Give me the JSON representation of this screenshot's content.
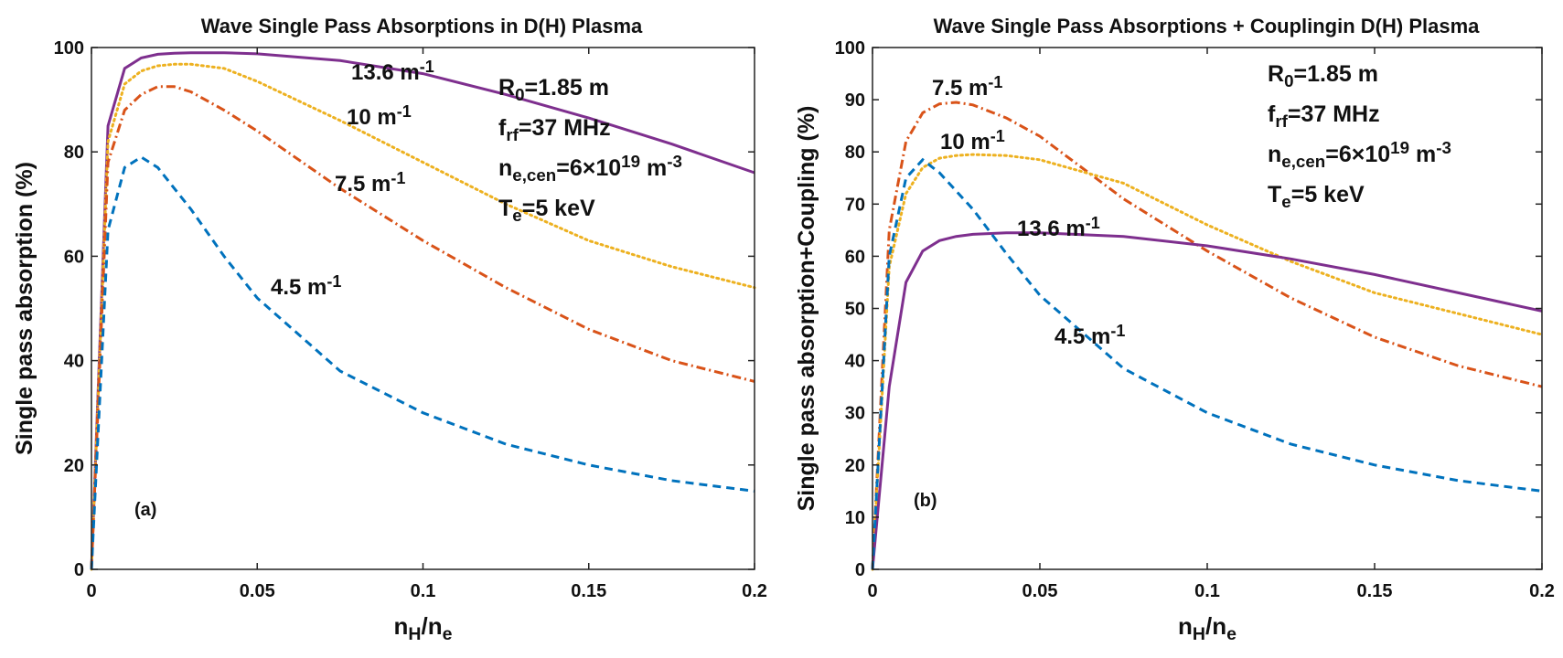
{
  "chart_data": [
    {
      "type": "line",
      "title": "Wave Single Pass Absorptions in D(H) Plasma",
      "xlabel": [
        {
          "t": "n",
          "s": "base"
        },
        {
          "t": "H",
          "s": "sub"
        },
        {
          "t": "/n",
          "s": "base"
        },
        {
          "t": "e",
          "s": "sub"
        }
      ],
      "ylabel": "Single pass absorption (%)",
      "panel": "(a)",
      "x": [
        0,
        0.005,
        0.01,
        0.015,
        0.02,
        0.025,
        0.03,
        0.04,
        0.05,
        0.075,
        0.1,
        0.125,
        0.15,
        0.175,
        0.2
      ],
      "xlim": [
        0,
        0.2
      ],
      "xticks": [
        0,
        0.05,
        0.1,
        0.15,
        0.2
      ],
      "ylim": [
        0,
        100
      ],
      "yticks": [
        0,
        20,
        40,
        60,
        80,
        100
      ],
      "series": [
        {
          "label": [
            {
              "t": "13.6 m",
              "s": "base"
            },
            {
              "t": "-1",
              "s": "sup"
            }
          ],
          "color": "#7e2f8e",
          "linestyle": "solid",
          "values": [
            0,
            85,
            96,
            98,
            98.7,
            98.9,
            99,
            99,
            98.8,
            97.5,
            95,
            91,
            86.5,
            81.5,
            76
          ]
        },
        {
          "label": [
            {
              "t": "10 m",
              "s": "base"
            },
            {
              "t": "-1",
              "s": "sup"
            }
          ],
          "color": "#edb120",
          "linestyle": "dotted",
          "values": [
            0,
            82,
            93,
            95.5,
            96.5,
            96.8,
            96.8,
            96,
            93.5,
            86,
            78,
            70,
            63,
            58,
            54
          ]
        },
        {
          "label": [
            {
              "t": "7.5 m",
              "s": "base"
            },
            {
              "t": "-1",
              "s": "sup"
            }
          ],
          "color": "#d95319",
          "linestyle": "dashdot",
          "values": [
            0,
            78,
            88,
            91,
            92.5,
            92.5,
            91.5,
            88,
            84,
            73,
            63,
            54,
            46,
            40,
            36
          ]
        },
        {
          "label": [
            {
              "t": "4.5 m",
              "s": "base"
            },
            {
              "t": "-1",
              "s": "sup"
            }
          ],
          "color": "#0072bd",
          "linestyle": "dashed",
          "values": [
            0,
            65,
            77,
            79,
            77,
            73,
            69,
            60,
            52,
            38,
            30,
            24,
            20,
            17,
            15
          ]
        }
      ],
      "annotations": [
        [
          {
            "t": "R",
            "s": "base"
          },
          {
            "t": "0",
            "s": "sub"
          },
          {
            "t": "=1.85 m",
            "s": "base"
          }
        ],
        [
          {
            "t": "f",
            "s": "base"
          },
          {
            "t": "rf",
            "s": "sub"
          },
          {
            "t": "=37 MHz",
            "s": "base"
          }
        ],
        [
          {
            "t": "n",
            "s": "base"
          },
          {
            "t": "e,cen",
            "s": "sub"
          },
          {
            "t": "=6×10",
            "s": "base"
          },
          {
            "t": "19",
            "s": "sup"
          },
          {
            "t": " m",
            "s": "base"
          },
          {
            "t": "-3",
            "s": "sup"
          }
        ],
        [
          {
            "t": "T",
            "s": "base"
          },
          {
            "t": "e",
            "s": "sub"
          },
          {
            "t": "=5 keV",
            "s": "base"
          }
        ]
      ]
    },
    {
      "type": "line",
      "title": "Wave Single Pass Absorptions + Couplingin D(H) Plasma",
      "xlabel": [
        {
          "t": "n",
          "s": "base"
        },
        {
          "t": "H",
          "s": "sub"
        },
        {
          "t": "/n",
          "s": "base"
        },
        {
          "t": "e",
          "s": "sub"
        }
      ],
      "ylabel": "Single pass absorption+Coupling (%)",
      "panel": "(b)",
      "x": [
        0,
        0.005,
        0.01,
        0.015,
        0.02,
        0.025,
        0.03,
        0.04,
        0.05,
        0.075,
        0.1,
        0.125,
        0.15,
        0.175,
        0.2
      ],
      "xlim": [
        0,
        0.2
      ],
      "xticks": [
        0,
        0.05,
        0.1,
        0.15,
        0.2
      ],
      "ylim": [
        0,
        100
      ],
      "yticks": [
        0,
        10,
        20,
        30,
        40,
        50,
        60,
        70,
        80,
        90,
        100
      ],
      "series": [
        {
          "label": [
            {
              "t": "7.5 m",
              "s": "base"
            },
            {
              "t": "-1",
              "s": "sup"
            }
          ],
          "color": "#d95319",
          "linestyle": "dashdot",
          "values": [
            0,
            65,
            82,
            87.5,
            89.2,
            89.5,
            89,
            86.5,
            83,
            71,
            61,
            52,
            44.5,
            39,
            35
          ]
        },
        {
          "label": [
            {
              "t": "10 m",
              "s": "base"
            },
            {
              "t": "-1",
              "s": "sup"
            }
          ],
          "color": "#edb120",
          "linestyle": "dotted",
          "values": [
            0,
            58,
            72,
            77,
            78.8,
            79.3,
            79.5,
            79.3,
            78.5,
            74,
            66,
            59,
            53,
            49,
            45
          ]
        },
        {
          "label": [
            {
              "t": "13.6 m",
              "s": "base"
            },
            {
              "t": "-1",
              "s": "sup"
            }
          ],
          "color": "#7e2f8e",
          "linestyle": "solid",
          "values": [
            0,
            35,
            55,
            61,
            63,
            63.8,
            64.2,
            64.5,
            64.5,
            63.8,
            62,
            59.5,
            56.5,
            53,
            49.5
          ]
        },
        {
          "label": [
            {
              "t": "4.5 m",
              "s": "base"
            },
            {
              "t": "-1",
              "s": "sup"
            }
          ],
          "color": "#0072bd",
          "linestyle": "dashed",
          "values": [
            0,
            60,
            75,
            78.5,
            76,
            72.5,
            69,
            60.5,
            52.5,
            38.5,
            30,
            24,
            20,
            17,
            15
          ]
        }
      ],
      "annotations": [
        [
          {
            "t": "R",
            "s": "base"
          },
          {
            "t": "0",
            "s": "sub"
          },
          {
            "t": "=1.85 m",
            "s": "base"
          }
        ],
        [
          {
            "t": "f",
            "s": "base"
          },
          {
            "t": "rf",
            "s": "sub"
          },
          {
            "t": "=37 MHz",
            "s": "base"
          }
        ],
        [
          {
            "t": "n",
            "s": "base"
          },
          {
            "t": "e,cen",
            "s": "sub"
          },
          {
            "t": "=6×10",
            "s": "base"
          },
          {
            "t": "19",
            "s": "sup"
          },
          {
            "t": " m",
            "s": "base"
          },
          {
            "t": "-3",
            "s": "sup"
          }
        ],
        [
          {
            "t": "T",
            "s": "base"
          },
          {
            "t": "e",
            "s": "sub"
          },
          {
            "t": "=5 keV",
            "s": "base"
          }
        ]
      ]
    }
  ]
}
